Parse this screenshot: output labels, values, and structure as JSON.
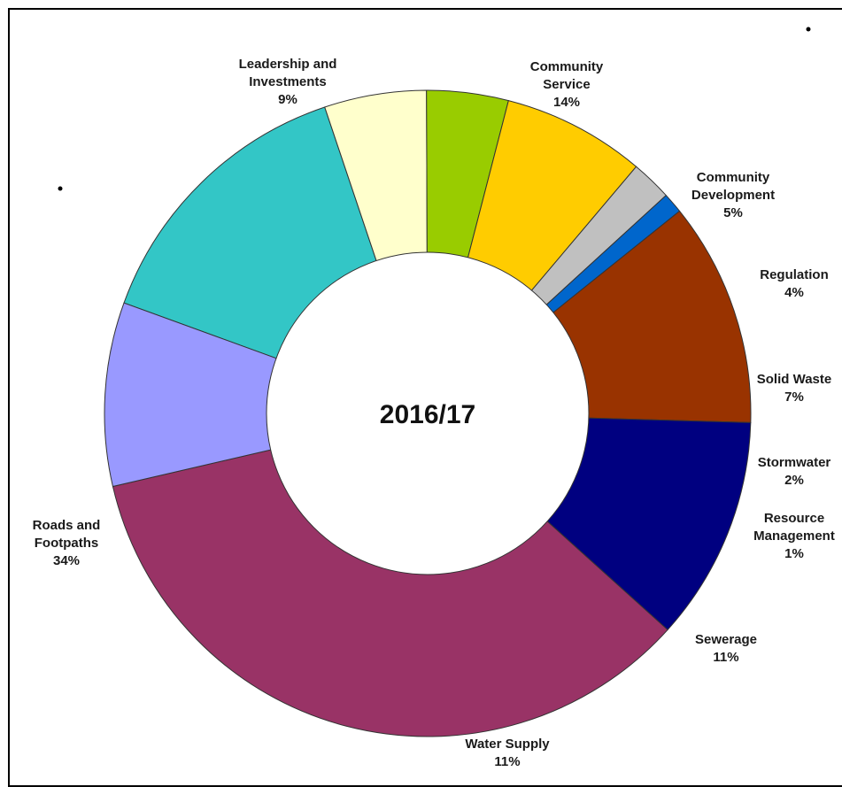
{
  "chart_data": {
    "type": "pie",
    "variant": "donut",
    "center_label": "2016/17",
    "slices": [
      {
        "label_lines": [
          "Community",
          "Service"
        ],
        "percent_label": "14%",
        "value": 14,
        "color": "#33C6C6"
      },
      {
        "label_lines": [
          "Community",
          "Development"
        ],
        "percent_label": "5%",
        "value": 5,
        "color": "#FFFFCC"
      },
      {
        "label_lines": [
          "Regulation"
        ],
        "percent_label": "4%",
        "value": 4,
        "color": "#99CC00"
      },
      {
        "label_lines": [
          "Solid Waste"
        ],
        "percent_label": "7%",
        "value": 7,
        "color": "#FFCC00"
      },
      {
        "label_lines": [
          "Stormwater"
        ],
        "percent_label": "2%",
        "value": 2,
        "color": "#C0C0C0"
      },
      {
        "label_lines": [
          "Resource",
          "Management"
        ],
        "percent_label": "1%",
        "value": 1,
        "color": "#0066CC"
      },
      {
        "label_lines": [
          "Sewerage"
        ],
        "percent_label": "11%",
        "value": 11,
        "color": "#993300"
      },
      {
        "label_lines": [
          "Water Supply"
        ],
        "percent_label": "11%",
        "value": 11,
        "color": "#000080"
      },
      {
        "label_lines": [
          "Roads and",
          "Footpaths"
        ],
        "percent_label": "34%",
        "value": 34,
        "color": "#993366"
      },
      {
        "label_lines": [
          "Leadership and",
          "Investments"
        ],
        "percent_label": "9%",
        "value": 9,
        "color": "#9999FF"
      }
    ]
  }
}
